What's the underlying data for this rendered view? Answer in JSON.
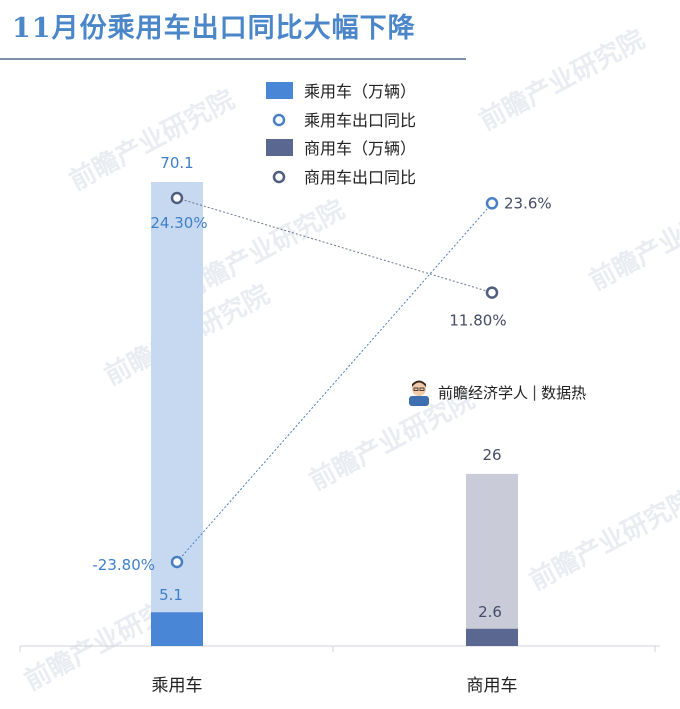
{
  "title": "11月份乘用车出口同比大幅下降",
  "watermark": "前瞻产业研究院",
  "badge": {
    "brand": "前瞻经济学人",
    "tag": "数据热"
  },
  "colors": {
    "title": "#4a86c8",
    "passenger_total": "#c6d9f1",
    "passenger_export": "#4a86d6",
    "commercial_total": "#c9ccd8",
    "commercial_export": "#5a6790",
    "passenger_line": "#4a7fc4",
    "commercial_line": "#4f5d7e"
  },
  "chart_data": {
    "type": "bar",
    "categories": [
      "乘用车",
      "商用车"
    ],
    "ylim": [
      0,
      80
    ],
    "series": [
      {
        "name": "乘用车（万辆）",
        "kind": "bar",
        "legend_swatch": "passenger_export",
        "values": [
          70.1,
          null
        ],
        "export_values": [
          5.1,
          null
        ]
      },
      {
        "name": "乘用车出口同比",
        "kind": "line",
        "values": [
          -23.8,
          23.6
        ],
        "labels": [
          "-23.80%",
          "23.6%"
        ]
      },
      {
        "name": "商用车（万辆）",
        "kind": "bar",
        "legend_swatch": "commercial_export",
        "values": [
          null,
          26
        ],
        "export_values": [
          null,
          2.6
        ]
      },
      {
        "name": "商用车出口同比",
        "kind": "line",
        "values": [
          24.3,
          11.8
        ],
        "labels": [
          "24.30%",
          "11.80%"
        ]
      }
    ],
    "bar_labels": {
      "passenger_total": "70.1",
      "passenger_export": "5.1",
      "commercial_total": "26",
      "commercial_export": "2.6"
    },
    "legend_position": "top-right"
  }
}
